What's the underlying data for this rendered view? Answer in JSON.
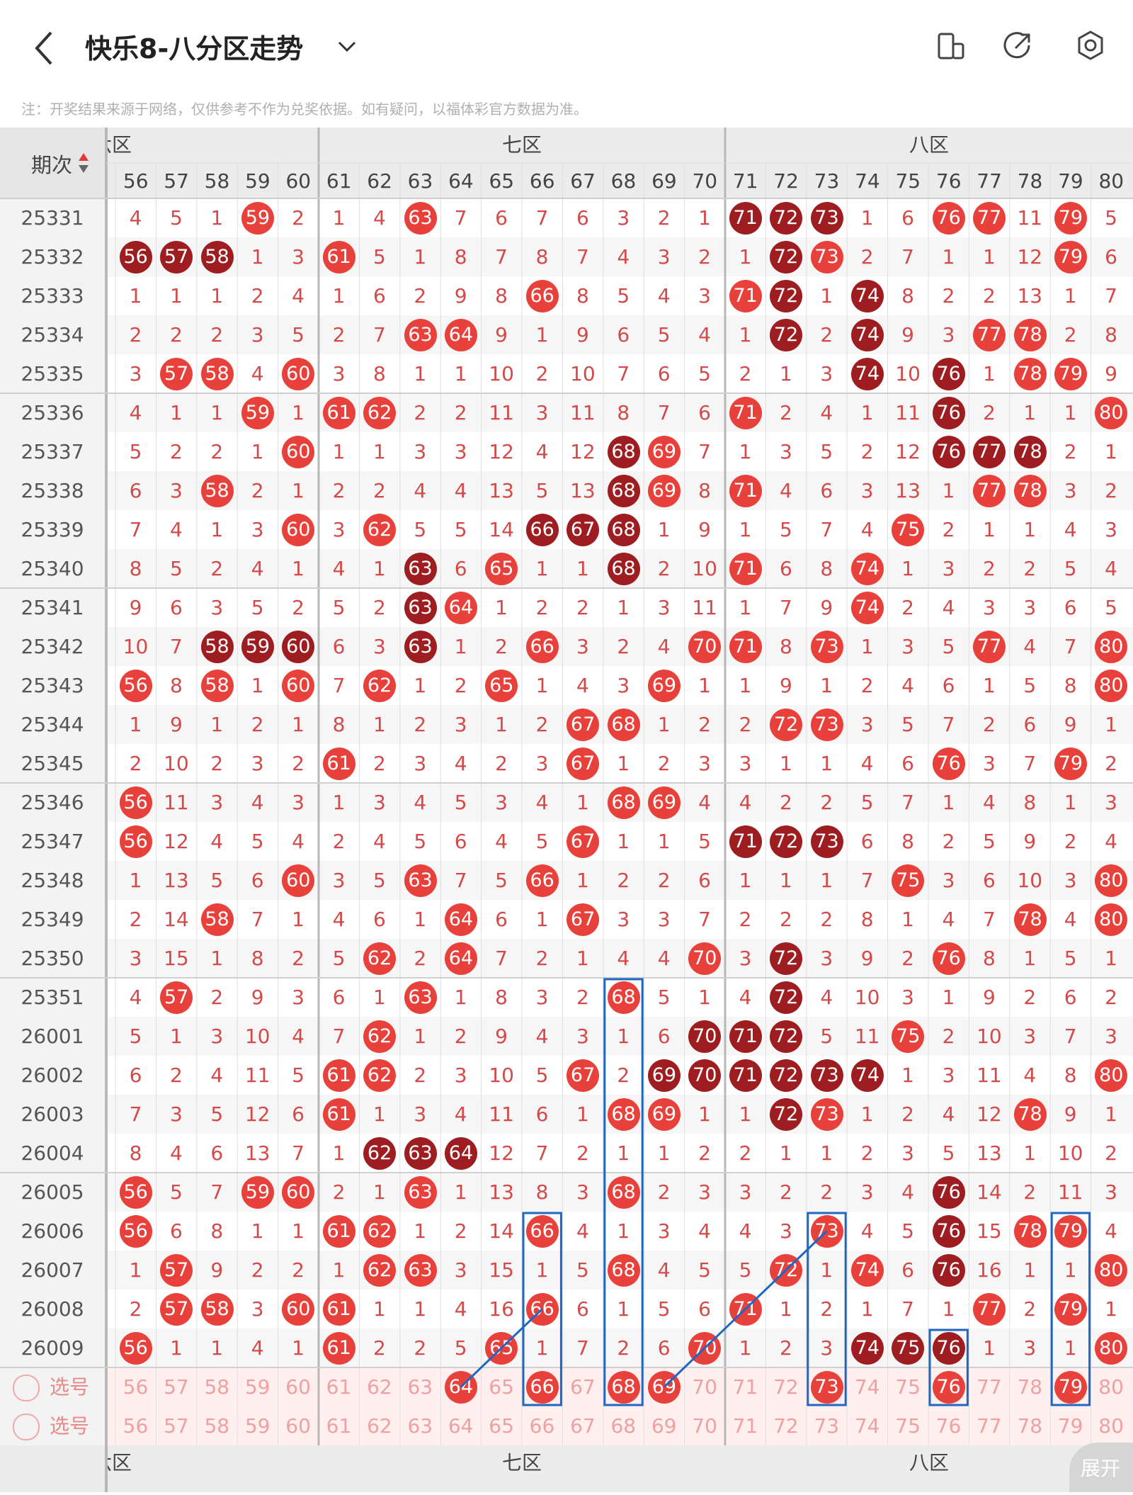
{
  "header": {
    "title": "快乐8-八分区走势",
    "icons": [
      "back-arrow-icon",
      "chevron-down-icon",
      "device-icon",
      "share-icon",
      "settings-icon"
    ]
  },
  "note": "注：开奖结果来源于网络，仅供参考不作为兑奖依据。如有疑问，以福体彩官方数据为准。",
  "table": {
    "period_header": "期次",
    "zones": [
      "六区",
      "七区",
      "八区"
    ],
    "columns": [
      56,
      57,
      58,
      59,
      60,
      61,
      62,
      63,
      64,
      65,
      66,
      67,
      68,
      69,
      70,
      71,
      72,
      73,
      74,
      75,
      76,
      77,
      78,
      79,
      80
    ],
    "rows": [
      {
        "issue": "25331",
        "cells": [
          "4",
          "5",
          "1",
          "59",
          "2",
          "1",
          "4",
          "63",
          "7",
          "6",
          "7",
          "6",
          "3",
          "2",
          "1",
          "71",
          "72",
          "73",
          "1",
          "6",
          "76",
          "77",
          "11",
          "79",
          "5"
        ],
        "dark": [
          71,
          72,
          73
        ]
      },
      {
        "issue": "25332",
        "cells": [
          "56",
          "57",
          "58",
          "1",
          "3",
          "61",
          "5",
          "1",
          "8",
          "7",
          "8",
          "7",
          "4",
          "3",
          "2",
          "1",
          "72",
          "73",
          "2",
          "7",
          "1",
          "1",
          "12",
          "79",
          "6"
        ],
        "dark": [
          56,
          57,
          58,
          72
        ]
      },
      {
        "issue": "25333",
        "cells": [
          "1",
          "1",
          "1",
          "2",
          "4",
          "1",
          "6",
          "2",
          "9",
          "8",
          "66",
          "8",
          "5",
          "4",
          "3",
          "71",
          "72",
          "1",
          "74",
          "8",
          "2",
          "2",
          "13",
          "1",
          "7"
        ],
        "dark": [
          72,
          74
        ]
      },
      {
        "issue": "25334",
        "cells": [
          "2",
          "2",
          "2",
          "3",
          "5",
          "2",
          "7",
          "63",
          "64",
          "9",
          "1",
          "9",
          "6",
          "5",
          "4",
          "1",
          "72",
          "2",
          "74",
          "9",
          "3",
          "77",
          "78",
          "2",
          "8"
        ],
        "dark": [
          72,
          74
        ]
      },
      {
        "issue": "25335",
        "cells": [
          "3",
          "57",
          "58",
          "4",
          "60",
          "3",
          "8",
          "1",
          "1",
          "10",
          "2",
          "10",
          "7",
          "6",
          "5",
          "2",
          "1",
          "3",
          "74",
          "10",
          "76",
          "1",
          "78",
          "79",
          "9"
        ],
        "dark": [
          74,
          76
        ]
      },
      {
        "issue": "25336",
        "cells": [
          "4",
          "1",
          "1",
          "59",
          "1",
          "61",
          "62",
          "2",
          "2",
          "11",
          "3",
          "11",
          "8",
          "7",
          "6",
          "71",
          "2",
          "4",
          "1",
          "11",
          "76",
          "2",
          "1",
          "1",
          "80"
        ],
        "dark": [
          76
        ]
      },
      {
        "issue": "25337",
        "cells": [
          "5",
          "2",
          "2",
          "1",
          "60",
          "1",
          "1",
          "3",
          "3",
          "12",
          "4",
          "12",
          "68",
          "69",
          "7",
          "1",
          "3",
          "5",
          "2",
          "12",
          "76",
          "77",
          "78",
          "2",
          "1"
        ],
        "dark": [
          68,
          76,
          77,
          78
        ]
      },
      {
        "issue": "25338",
        "cells": [
          "6",
          "3",
          "58",
          "2",
          "1",
          "2",
          "2",
          "4",
          "4",
          "13",
          "5",
          "13",
          "68",
          "69",
          "8",
          "71",
          "4",
          "6",
          "3",
          "13",
          "1",
          "77",
          "78",
          "3",
          "2"
        ],
        "dark": [
          68
        ]
      },
      {
        "issue": "25339",
        "cells": [
          "7",
          "4",
          "1",
          "3",
          "60",
          "3",
          "62",
          "5",
          "5",
          "14",
          "66",
          "67",
          "68",
          "1",
          "9",
          "1",
          "5",
          "7",
          "4",
          "75",
          "2",
          "1",
          "1",
          "4",
          "3"
        ],
        "dark": [
          66,
          67,
          68
        ]
      },
      {
        "issue": "25340",
        "cells": [
          "8",
          "5",
          "2",
          "4",
          "1",
          "4",
          "1",
          "63",
          "6",
          "65",
          "1",
          "1",
          "68",
          "2",
          "10",
          "71",
          "6",
          "8",
          "74",
          "1",
          "3",
          "2",
          "2",
          "5",
          "4"
        ],
        "dark": [
          63,
          68
        ]
      },
      {
        "issue": "25341",
        "cells": [
          "9",
          "6",
          "3",
          "5",
          "2",
          "5",
          "2",
          "63",
          "64",
          "1",
          "2",
          "2",
          "1",
          "3",
          "11",
          "1",
          "7",
          "9",
          "74",
          "2",
          "4",
          "3",
          "3",
          "6",
          "5"
        ],
        "dark": [
          63
        ]
      },
      {
        "issue": "25342",
        "cells": [
          "10",
          "7",
          "58",
          "59",
          "60",
          "6",
          "3",
          "63",
          "1",
          "2",
          "66",
          "3",
          "2",
          "4",
          "70",
          "71",
          "8",
          "73",
          "1",
          "3",
          "5",
          "77",
          "4",
          "7",
          "80"
        ],
        "dark": [
          58,
          59,
          60,
          63
        ]
      },
      {
        "issue": "25343",
        "cells": [
          "56",
          "8",
          "58",
          "1",
          "60",
          "7",
          "62",
          "1",
          "2",
          "65",
          "1",
          "4",
          "3",
          "69",
          "1",
          "1",
          "9",
          "1",
          "2",
          "4",
          "6",
          "1",
          "5",
          "8",
          "80"
        ],
        "dark": []
      },
      {
        "issue": "25344",
        "cells": [
          "1",
          "9",
          "1",
          "2",
          "1",
          "8",
          "1",
          "2",
          "3",
          "1",
          "2",
          "67",
          "68",
          "1",
          "2",
          "2",
          "72",
          "73",
          "3",
          "5",
          "7",
          "2",
          "6",
          "9",
          "1"
        ],
        "dark": []
      },
      {
        "issue": "25345",
        "cells": [
          "2",
          "10",
          "2",
          "3",
          "2",
          "61",
          "2",
          "3",
          "4",
          "2",
          "3",
          "67",
          "1",
          "2",
          "3",
          "3",
          "1",
          "1",
          "4",
          "6",
          "76",
          "3",
          "7",
          "79",
          "2"
        ],
        "dark": []
      },
      {
        "issue": "25346",
        "cells": [
          "56",
          "11",
          "3",
          "4",
          "3",
          "1",
          "3",
          "4",
          "5",
          "3",
          "4",
          "1",
          "68",
          "69",
          "4",
          "4",
          "2",
          "2",
          "5",
          "7",
          "1",
          "4",
          "8",
          "1",
          "3"
        ],
        "dark": []
      },
      {
        "issue": "25347",
        "cells": [
          "56",
          "12",
          "4",
          "5",
          "4",
          "2",
          "4",
          "5",
          "6",
          "4",
          "5",
          "67",
          "1",
          "1",
          "5",
          "71",
          "72",
          "73",
          "6",
          "8",
          "2",
          "5",
          "9",
          "2",
          "4"
        ],
        "dark": [
          71,
          72,
          73
        ]
      },
      {
        "issue": "25348",
        "cells": [
          "1",
          "13",
          "5",
          "6",
          "60",
          "3",
          "5",
          "63",
          "7",
          "5",
          "66",
          "1",
          "2",
          "2",
          "6",
          "1",
          "1",
          "1",
          "7",
          "75",
          "3",
          "6",
          "10",
          "3",
          "80"
        ],
        "dark": []
      },
      {
        "issue": "25349",
        "cells": [
          "2",
          "14",
          "58",
          "7",
          "1",
          "4",
          "6",
          "1",
          "64",
          "6",
          "1",
          "67",
          "3",
          "3",
          "7",
          "2",
          "2",
          "2",
          "8",
          "1",
          "4",
          "7",
          "78",
          "4",
          "80"
        ],
        "dark": []
      },
      {
        "issue": "25350",
        "cells": [
          "3",
          "15",
          "1",
          "8",
          "2",
          "5",
          "62",
          "2",
          "64",
          "7",
          "2",
          "1",
          "4",
          "4",
          "70",
          "3",
          "72",
          "3",
          "9",
          "2",
          "76",
          "8",
          "1",
          "5",
          "1"
        ],
        "dark": [
          72
        ]
      },
      {
        "issue": "25351",
        "cells": [
          "4",
          "57",
          "2",
          "9",
          "3",
          "6",
          "1",
          "63",
          "1",
          "8",
          "3",
          "2",
          "68",
          "5",
          "1",
          "4",
          "72",
          "4",
          "10",
          "3",
          "1",
          "9",
          "2",
          "6",
          "2"
        ],
        "dark": [
          72
        ]
      },
      {
        "issue": "26001",
        "cells": [
          "5",
          "1",
          "3",
          "10",
          "4",
          "7",
          "62",
          "1",
          "2",
          "9",
          "4",
          "3",
          "1",
          "6",
          "70",
          "71",
          "72",
          "5",
          "11",
          "75",
          "2",
          "10",
          "3",
          "7",
          "3"
        ],
        "dark": [
          70,
          71,
          72
        ]
      },
      {
        "issue": "26002",
        "cells": [
          "6",
          "2",
          "4",
          "11",
          "5",
          "61",
          "62",
          "2",
          "3",
          "10",
          "5",
          "67",
          "2",
          "69",
          "70",
          "71",
          "72",
          "73",
          "74",
          "1",
          "3",
          "11",
          "4",
          "8",
          "80"
        ],
        "dark": [
          69,
          70,
          71,
          72,
          73,
          74
        ]
      },
      {
        "issue": "26003",
        "cells": [
          "7",
          "3",
          "5",
          "12",
          "6",
          "61",
          "1",
          "3",
          "4",
          "11",
          "6",
          "1",
          "68",
          "69",
          "1",
          "1",
          "72",
          "73",
          "1",
          "2",
          "4",
          "12",
          "78",
          "9",
          "1"
        ],
        "dark": [
          72
        ]
      },
      {
        "issue": "26004",
        "cells": [
          "8",
          "4",
          "6",
          "13",
          "7",
          "1",
          "62",
          "63",
          "64",
          "12",
          "7",
          "2",
          "1",
          "1",
          "2",
          "2",
          "1",
          "1",
          "2",
          "3",
          "5",
          "13",
          "1",
          "10",
          "2"
        ],
        "dark": [
          62,
          63,
          64
        ]
      },
      {
        "issue": "26005",
        "cells": [
          "56",
          "5",
          "7",
          "59",
          "60",
          "2",
          "1",
          "63",
          "1",
          "13",
          "8",
          "3",
          "68",
          "2",
          "3",
          "3",
          "2",
          "2",
          "3",
          "4",
          "76",
          "14",
          "2",
          "11",
          "3"
        ],
        "dark": [
          76
        ]
      },
      {
        "issue": "26006",
        "cells": [
          "56",
          "6",
          "8",
          "1",
          "1",
          "61",
          "62",
          "1",
          "2",
          "14",
          "66",
          "4",
          "1",
          "3",
          "4",
          "4",
          "3",
          "73",
          "4",
          "5",
          "76",
          "15",
          "78",
          "79",
          "4"
        ],
        "dark": [
          76
        ]
      },
      {
        "issue": "26007",
        "cells": [
          "1",
          "57",
          "9",
          "2",
          "2",
          "1",
          "62",
          "63",
          "3",
          "15",
          "1",
          "5",
          "68",
          "4",
          "5",
          "5",
          "72",
          "1",
          "74",
          "6",
          "76",
          "16",
          "1",
          "1",
          "80"
        ],
        "dark": [
          76
        ]
      },
      {
        "issue": "26008",
        "cells": [
          "2",
          "57",
          "58",
          "3",
          "60",
          "61",
          "1",
          "1",
          "4",
          "16",
          "66",
          "6",
          "1",
          "5",
          "6",
          "71",
          "1",
          "2",
          "1",
          "7",
          "1",
          "77",
          "2",
          "79",
          "1"
        ],
        "dark": []
      },
      {
        "issue": "26009",
        "cells": [
          "56",
          "1",
          "1",
          "4",
          "1",
          "61",
          "2",
          "2",
          "5",
          "65",
          "1",
          "7",
          "2",
          "6",
          "70",
          "1",
          "2",
          "3",
          "74",
          "75",
          "76",
          "1",
          "3",
          "1",
          "80"
        ],
        "dark": [
          74,
          75,
          76
        ]
      }
    ],
    "select_label": "选号",
    "select_rows": [
      {
        "balls": [
          64,
          66,
          68,
          69,
          73,
          76,
          79
        ]
      },
      {
        "balls": []
      }
    ]
  },
  "expand_label": "展开",
  "colors": {
    "ball_red": "#e8413b",
    "ball_dark": "#9d1d20",
    "box_blue": "#1f67c2"
  }
}
